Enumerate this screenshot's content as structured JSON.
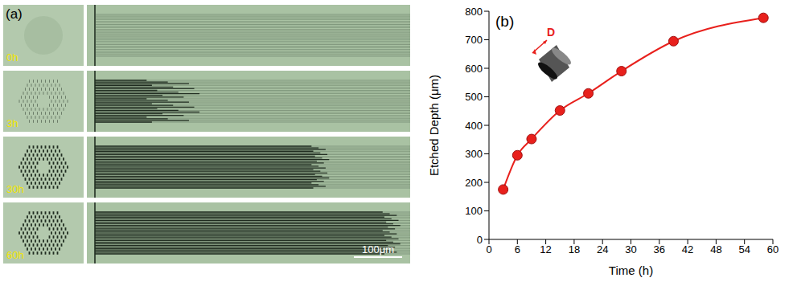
{
  "panel_a": {
    "label": "(a)",
    "time_labels": [
      "0h",
      "3h",
      "30h",
      "60h"
    ],
    "scale_bar": "100μm"
  },
  "chart_data": {
    "type": "line",
    "panel_label": "(b)",
    "annotations": [
      "D"
    ],
    "x_label": "Time (h)",
    "y_label": "Etched Depth (μm)",
    "x": [
      3,
      6,
      9,
      15,
      21,
      28,
      39,
      58
    ],
    "series": [
      {
        "color": "#e8201c",
        "marker": "circle",
        "line_style": "solid",
        "values": [
          175,
          295,
          352,
          452,
          512,
          590,
          695,
          777
        ]
      }
    ],
    "xlim": [
      0,
      60
    ],
    "xticks": [
      0,
      6,
      12,
      18,
      24,
      30,
      36,
      42,
      48,
      54,
      60
    ],
    "ylim": [
      0,
      800
    ],
    "yticks": [
      0,
      100,
      200,
      300,
      400,
      500,
      600,
      700,
      800
    ],
    "grid": false
  }
}
